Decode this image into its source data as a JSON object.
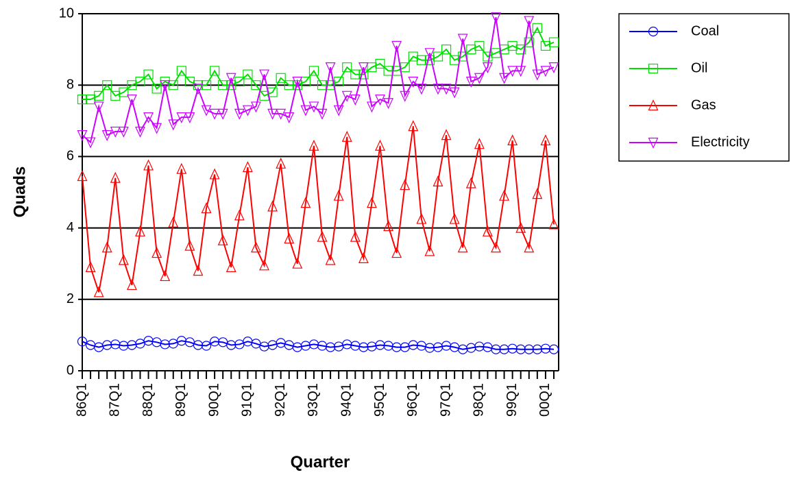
{
  "chart_data": {
    "type": "line",
    "x_label": "Quarter",
    "y_label": "Quads",
    "categories": [
      "86Q1",
      null,
      null,
      null,
      "87Q1",
      null,
      null,
      null,
      "88Q1",
      null,
      null,
      null,
      "89Q1",
      null,
      null,
      null,
      "90Q1",
      null,
      null,
      null,
      "91Q1",
      null,
      null,
      null,
      "92Q1",
      null,
      null,
      null,
      "93Q1",
      null,
      null,
      null,
      "94Q1",
      null,
      null,
      null,
      "95Q1",
      null,
      null,
      null,
      "96Q1",
      null,
      null,
      null,
      "97Q1",
      null,
      null,
      null,
      "98Q1",
      null,
      null,
      null,
      "99Q1",
      null,
      null,
      null,
      "00Q1",
      null
    ],
    "ylim": [
      0,
      10
    ],
    "yticks": [
      0,
      2,
      4,
      6,
      8,
      10
    ],
    "grid": true,
    "legend": "upper right",
    "series": [
      {
        "name": "Coal",
        "color": "#0000ff",
        "marker": "circle",
        "values": [
          0.82,
          0.72,
          0.66,
          0.72,
          0.74,
          0.7,
          0.72,
          0.76,
          0.84,
          0.8,
          0.74,
          0.76,
          0.84,
          0.8,
          0.72,
          0.7,
          0.82,
          0.8,
          0.72,
          0.74,
          0.82,
          0.76,
          0.68,
          0.72,
          0.78,
          0.72,
          0.66,
          0.7,
          0.74,
          0.7,
          0.66,
          0.68,
          0.74,
          0.7,
          0.66,
          0.68,
          0.72,
          0.7,
          0.66,
          0.66,
          0.72,
          0.7,
          0.64,
          0.66,
          0.7,
          0.66,
          0.6,
          0.64,
          0.68,
          0.66,
          0.6,
          0.6,
          0.62,
          0.6,
          0.6,
          0.6,
          0.62,
          0.6
        ]
      },
      {
        "name": "Oil",
        "color": "#00e000",
        "marker": "square",
        "values": [
          7.6,
          7.6,
          7.7,
          8.0,
          7.7,
          7.8,
          8.0,
          8.1,
          8.3,
          7.9,
          8.1,
          8.0,
          8.4,
          8.1,
          8.0,
          8.0,
          8.4,
          8.0,
          8.0,
          8.1,
          8.3,
          8.0,
          7.7,
          7.8,
          8.2,
          8.0,
          8.0,
          8.1,
          8.4,
          8.0,
          8.0,
          8.1,
          8.5,
          8.3,
          8.3,
          8.5,
          8.6,
          8.4,
          8.4,
          8.5,
          8.8,
          8.7,
          8.7,
          8.8,
          9.0,
          8.7,
          8.8,
          9.0,
          9.1,
          8.8,
          8.9,
          9.0,
          9.1,
          9.0,
          9.2,
          9.6,
          9.1,
          9.2
        ]
      },
      {
        "name": "Gas",
        "color": "#ff0000",
        "marker": "triangle-up",
        "values": [
          5.45,
          2.9,
          2.2,
          3.45,
          5.4,
          3.1,
          2.4,
          3.9,
          5.75,
          3.3,
          2.65,
          4.15,
          5.65,
          3.5,
          2.8,
          4.55,
          5.5,
          3.65,
          2.9,
          4.35,
          5.7,
          3.45,
          2.95,
          4.6,
          5.8,
          3.7,
          3.0,
          4.7,
          6.3,
          3.75,
          3.1,
          4.9,
          6.55,
          3.75,
          3.15,
          4.7,
          6.3,
          4.05,
          3.3,
          5.2,
          6.85,
          4.25,
          3.35,
          5.3,
          6.6,
          4.25,
          3.45,
          5.25,
          6.35,
          3.9,
          3.45,
          4.9,
          6.45,
          4.0,
          3.45,
          4.95,
          6.45,
          4.1
        ]
      },
      {
        "name": "Electricity",
        "color": "#cc00ff",
        "marker": "triangle-down",
        "values": [
          6.6,
          6.4,
          7.4,
          6.6,
          6.7,
          6.7,
          7.6,
          6.7,
          7.1,
          6.8,
          8.0,
          6.9,
          7.1,
          7.1,
          7.9,
          7.3,
          7.2,
          7.2,
          8.2,
          7.2,
          7.3,
          7.4,
          8.3,
          7.2,
          7.2,
          7.1,
          8.1,
          7.3,
          7.4,
          7.2,
          8.5,
          7.3,
          7.7,
          7.6,
          8.5,
          7.4,
          7.6,
          7.5,
          9.1,
          7.7,
          8.1,
          7.9,
          8.9,
          7.9,
          7.9,
          7.8,
          9.3,
          8.1,
          8.2,
          8.5,
          9.9,
          8.2,
          8.4,
          8.4,
          9.8,
          8.3,
          8.4,
          8.5
        ]
      }
    ]
  }
}
